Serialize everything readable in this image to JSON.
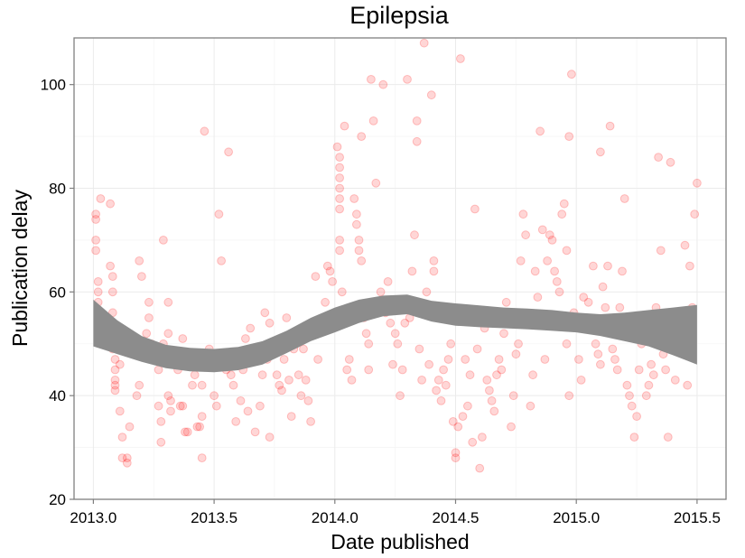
{
  "chart_data": {
    "type": "scatter",
    "title": "Epilepsia",
    "xlabel": "Date published",
    "ylabel": "Publication delay",
    "xlim": [
      2012.92,
      2015.62
    ],
    "ylim": [
      20,
      109
    ],
    "x_ticks": [
      "2013.0",
      "2013.5",
      "2014.0",
      "2014.5",
      "2015.0",
      "2015.5"
    ],
    "y_ticks": [
      "20",
      "40",
      "60",
      "80",
      "100"
    ],
    "grid": true,
    "colors": {
      "points": "#ff0000",
      "smooth_band": "#8c8c8c",
      "panel_border": "#7f7f7f",
      "grid_major": "#ebebeb",
      "grid_minor": "#f5f5f5"
    },
    "points": [
      [
        2013.01,
        75
      ],
      [
        2013.01,
        74
      ],
      [
        2013.01,
        70
      ],
      [
        2013.01,
        68
      ],
      [
        2013.02,
        62
      ],
      [
        2013.02,
        60
      ],
      [
        2013.02,
        58
      ],
      [
        2013.02,
        55
      ],
      [
        2013.03,
        78
      ],
      [
        2013.06,
        55
      ],
      [
        2013.07,
        77
      ],
      [
        2013.07,
        65
      ],
      [
        2013.08,
        63
      ],
      [
        2013.08,
        60
      ],
      [
        2013.08,
        56
      ],
      [
        2013.08,
        49
      ],
      [
        2013.09,
        47
      ],
      [
        2013.09,
        45
      ],
      [
        2013.09,
        43
      ],
      [
        2013.09,
        42
      ],
      [
        2013.09,
        41
      ],
      [
        2013.11,
        46
      ],
      [
        2013.11,
        37
      ],
      [
        2013.12,
        32
      ],
      [
        2013.12,
        28
      ],
      [
        2013.14,
        28
      ],
      [
        2013.14,
        27
      ],
      [
        2013.15,
        34
      ],
      [
        2013.18,
        40
      ],
      [
        2013.19,
        66
      ],
      [
        2013.19,
        42
      ],
      [
        2013.2,
        63
      ],
      [
        2013.22,
        52
      ],
      [
        2013.23,
        58
      ],
      [
        2013.23,
        55
      ],
      [
        2013.24,
        50
      ],
      [
        2013.26,
        48
      ],
      [
        2013.27,
        38
      ],
      [
        2013.27,
        45
      ],
      [
        2013.28,
        35
      ],
      [
        2013.28,
        31
      ],
      [
        2013.28,
        47
      ],
      [
        2013.29,
        50
      ],
      [
        2013.29,
        70
      ],
      [
        2013.31,
        52
      ],
      [
        2013.31,
        58
      ],
      [
        2013.31,
        40
      ],
      [
        2013.32,
        39
      ],
      [
        2013.32,
        37
      ],
      [
        2013.34,
        47
      ],
      [
        2013.35,
        45
      ],
      [
        2013.36,
        38
      ],
      [
        2013.37,
        38
      ],
      [
        2013.37,
        51
      ],
      [
        2013.38,
        33
      ],
      [
        2013.39,
        33
      ],
      [
        2013.41,
        42
      ],
      [
        2013.42,
        44
      ],
      [
        2013.43,
        34
      ],
      [
        2013.44,
        34
      ],
      [
        2013.45,
        36
      ],
      [
        2013.45,
        42
      ],
      [
        2013.45,
        28
      ],
      [
        2013.46,
        91
      ],
      [
        2013.48,
        49
      ],
      [
        2013.5,
        40
      ],
      [
        2013.51,
        38
      ],
      [
        2013.52,
        75
      ],
      [
        2013.53,
        66
      ],
      [
        2013.55,
        45
      ],
      [
        2013.56,
        87
      ],
      [
        2013.57,
        44
      ],
      [
        2013.58,
        42
      ],
      [
        2013.59,
        35
      ],
      [
        2013.6,
        46
      ],
      [
        2013.61,
        39
      ],
      [
        2013.62,
        45
      ],
      [
        2013.63,
        51
      ],
      [
        2013.64,
        37
      ],
      [
        2013.65,
        53
      ],
      [
        2013.66,
        49
      ],
      [
        2013.67,
        33
      ],
      [
        2013.69,
        38
      ],
      [
        2013.7,
        44
      ],
      [
        2013.71,
        56
      ],
      [
        2013.72,
        47
      ],
      [
        2013.73,
        32
      ],
      [
        2013.73,
        54
      ],
      [
        2013.75,
        48
      ],
      [
        2013.76,
        44
      ],
      [
        2013.77,
        42
      ],
      [
        2013.78,
        41
      ],
      [
        2013.79,
        47
      ],
      [
        2013.8,
        55
      ],
      [
        2013.81,
        43
      ],
      [
        2013.82,
        36
      ],
      [
        2013.83,
        49
      ],
      [
        2013.84,
        50
      ],
      [
        2013.85,
        44
      ],
      [
        2013.86,
        40
      ],
      [
        2013.87,
        49
      ],
      [
        2013.88,
        43
      ],
      [
        2013.89,
        39
      ],
      [
        2013.9,
        35
      ],
      [
        2013.91,
        53
      ],
      [
        2013.92,
        63
      ],
      [
        2013.93,
        47
      ],
      [
        2013.95,
        54
      ],
      [
        2013.96,
        58
      ],
      [
        2013.97,
        65
      ],
      [
        2013.98,
        64
      ],
      [
        2013.99,
        62
      ],
      [
        2014.01,
        88
      ],
      [
        2014.02,
        86
      ],
      [
        2014.02,
        84
      ],
      [
        2014.02,
        82
      ],
      [
        2014.02,
        80
      ],
      [
        2014.02,
        78
      ],
      [
        2014.02,
        76
      ],
      [
        2014.02,
        70
      ],
      [
        2014.02,
        68
      ],
      [
        2014.03,
        60
      ],
      [
        2014.04,
        92
      ],
      [
        2014.05,
        45
      ],
      [
        2014.06,
        47
      ],
      [
        2014.07,
        43
      ],
      [
        2014.08,
        78
      ],
      [
        2014.09,
        75
      ],
      [
        2014.09,
        73
      ],
      [
        2014.1,
        70
      ],
      [
        2014.1,
        68
      ],
      [
        2014.11,
        90
      ],
      [
        2014.11,
        66
      ],
      [
        2014.12,
        55
      ],
      [
        2014.13,
        52
      ],
      [
        2014.14,
        50
      ],
      [
        2014.14,
        45
      ],
      [
        2014.15,
        101
      ],
      [
        2014.16,
        93
      ],
      [
        2014.17,
        81
      ],
      [
        2014.18,
        58
      ],
      [
        2014.19,
        60
      ],
      [
        2014.2,
        100
      ],
      [
        2014.21,
        56
      ],
      [
        2014.22,
        62
      ],
      [
        2014.23,
        54
      ],
      [
        2014.24,
        46
      ],
      [
        2014.25,
        52
      ],
      [
        2014.26,
        50
      ],
      [
        2014.27,
        40
      ],
      [
        2014.28,
        45
      ],
      [
        2014.29,
        54
      ],
      [
        2014.3,
        101
      ],
      [
        2014.31,
        55
      ],
      [
        2014.32,
        64
      ],
      [
        2014.33,
        71
      ],
      [
        2014.34,
        89
      ],
      [
        2014.34,
        93
      ],
      [
        2014.35,
        49
      ],
      [
        2014.36,
        43
      ],
      [
        2014.37,
        108
      ],
      [
        2014.38,
        60
      ],
      [
        2014.39,
        46
      ],
      [
        2014.4,
        98
      ],
      [
        2014.41,
        66
      ],
      [
        2014.41,
        64
      ],
      [
        2014.42,
        41
      ],
      [
        2014.43,
        43
      ],
      [
        2014.44,
        39
      ],
      [
        2014.45,
        45
      ],
      [
        2014.46,
        42
      ],
      [
        2014.47,
        47
      ],
      [
        2014.48,
        50
      ],
      [
        2014.49,
        35
      ],
      [
        2014.5,
        29
      ],
      [
        2014.5,
        28
      ],
      [
        2014.51,
        34
      ],
      [
        2014.52,
        105
      ],
      [
        2014.53,
        36
      ],
      [
        2014.54,
        47
      ],
      [
        2014.55,
        38
      ],
      [
        2014.56,
        44
      ],
      [
        2014.57,
        31
      ],
      [
        2014.58,
        76
      ],
      [
        2014.59,
        49
      ],
      [
        2014.6,
        26
      ],
      [
        2014.61,
        32
      ],
      [
        2014.62,
        53
      ],
      [
        2014.63,
        43
      ],
      [
        2014.64,
        41
      ],
      [
        2014.65,
        39
      ],
      [
        2014.66,
        37
      ],
      [
        2014.67,
        44
      ],
      [
        2014.68,
        47
      ],
      [
        2014.69,
        45
      ],
      [
        2014.7,
        52
      ],
      [
        2014.71,
        58
      ],
      [
        2014.72,
        56
      ],
      [
        2014.73,
        34
      ],
      [
        2014.74,
        40
      ],
      [
        2014.75,
        48
      ],
      [
        2014.76,
        50
      ],
      [
        2014.77,
        66
      ],
      [
        2014.78,
        75
      ],
      [
        2014.79,
        71
      ],
      [
        2014.8,
        54
      ],
      [
        2014.81,
        38
      ],
      [
        2014.82,
        44
      ],
      [
        2014.83,
        64
      ],
      [
        2014.84,
        59
      ],
      [
        2014.85,
        91
      ],
      [
        2014.86,
        72
      ],
      [
        2014.87,
        47
      ],
      [
        2014.88,
        66
      ],
      [
        2014.89,
        71
      ],
      [
        2014.9,
        70
      ],
      [
        2014.91,
        64
      ],
      [
        2014.92,
        62
      ],
      [
        2014.93,
        60
      ],
      [
        2014.94,
        75
      ],
      [
        2014.95,
        77
      ],
      [
        2014.96,
        68
      ],
      [
        2014.96,
        50
      ],
      [
        2014.97,
        90
      ],
      [
        2014.97,
        40
      ],
      [
        2014.98,
        102
      ],
      [
        2014.99,
        56
      ],
      [
        2015.0,
        54
      ],
      [
        2015.01,
        47
      ],
      [
        2015.02,
        43
      ],
      [
        2015.03,
        59
      ],
      [
        2015.04,
        55
      ],
      [
        2015.05,
        58
      ],
      [
        2015.06,
        53
      ],
      [
        2015.07,
        65
      ],
      [
        2015.08,
        50
      ],
      [
        2015.09,
        48
      ],
      [
        2015.1,
        87
      ],
      [
        2015.1,
        46
      ],
      [
        2015.11,
        61
      ],
      [
        2015.12,
        57
      ],
      [
        2015.13,
        65
      ],
      [
        2015.14,
        92
      ],
      [
        2015.15,
        49
      ],
      [
        2015.16,
        47
      ],
      [
        2015.17,
        45
      ],
      [
        2015.18,
        57
      ],
      [
        2015.19,
        64
      ],
      [
        2015.2,
        78
      ],
      [
        2015.21,
        42
      ],
      [
        2015.22,
        40
      ],
      [
        2015.23,
        38
      ],
      [
        2015.24,
        32
      ],
      [
        2015.25,
        36
      ],
      [
        2015.26,
        45
      ],
      [
        2015.27,
        50
      ],
      [
        2015.28,
        55
      ],
      [
        2015.29,
        40
      ],
      [
        2015.3,
        42
      ],
      [
        2015.31,
        46
      ],
      [
        2015.32,
        44
      ],
      [
        2015.33,
        57
      ],
      [
        2015.34,
        86
      ],
      [
        2015.35,
        68
      ],
      [
        2015.36,
        48
      ],
      [
        2015.37,
        45
      ],
      [
        2015.38,
        32
      ],
      [
        2015.39,
        85
      ],
      [
        2015.4,
        50
      ],
      [
        2015.41,
        43
      ],
      [
        2015.42,
        52
      ],
      [
        2015.43,
        50
      ],
      [
        2015.44,
        55
      ],
      [
        2015.45,
        69
      ],
      [
        2015.46,
        42
      ],
      [
        2015.47,
        65
      ],
      [
        2015.48,
        57
      ],
      [
        2015.49,
        75
      ],
      [
        2015.5,
        81
      ]
    ],
    "smooth_band": {
      "x": [
        2013.0,
        2013.1,
        2013.2,
        2013.3,
        2013.4,
        2013.5,
        2013.6,
        2013.7,
        2013.8,
        2013.9,
        2014.0,
        2014.1,
        2014.2,
        2014.3,
        2014.4,
        2014.5,
        2014.6,
        2014.7,
        2014.8,
        2014.9,
        2015.0,
        2015.1,
        2015.2,
        2015.3,
        2015.4,
        2015.5
      ],
      "upper": [
        58.5,
        54.5,
        51.5,
        49.8,
        49.2,
        49.0,
        49.4,
        50.5,
        52.5,
        55.0,
        57.0,
        58.5,
        59.3,
        59.5,
        58.3,
        57.8,
        57.4,
        57.0,
        56.8,
        56.5,
        56.0,
        55.7,
        56.0,
        56.5,
        57.0,
        57.5
      ],
      "lower": [
        49.5,
        48.0,
        46.5,
        45.3,
        44.7,
        44.5,
        44.9,
        46.0,
        48.2,
        50.5,
        52.2,
        54.0,
        55.3,
        55.7,
        54.3,
        53.5,
        53.2,
        53.0,
        52.8,
        52.5,
        52.2,
        51.5,
        50.5,
        49.5,
        47.8,
        46.0
      ]
    }
  }
}
